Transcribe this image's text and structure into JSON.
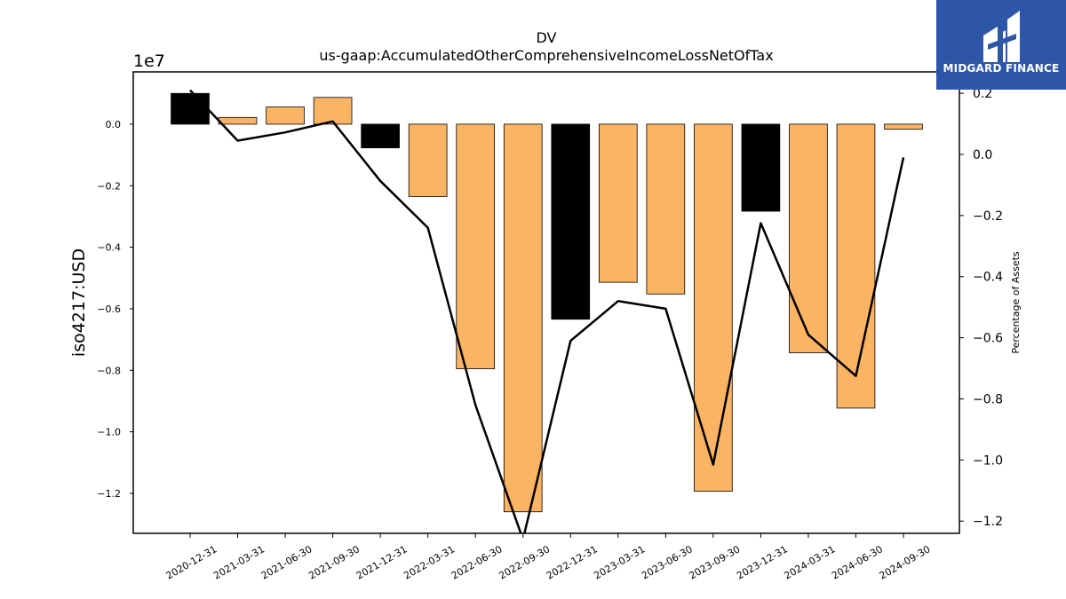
{
  "chart_data": {
    "type": "bar",
    "title": "DV",
    "subtitle": "us-gaap:AccumulatedOtherComprehensiveIncomeLossNetOfTax",
    "ylabel": "iso4217:USD",
    "y2label": "Percentage of Assets",
    "offset_text": "1e7",
    "categories": [
      "2020-12-31",
      "2021-03-31",
      "2021-06-30",
      "2021-09-30",
      "2021-12-31",
      "2022-03-31",
      "2022-06-30",
      "2022-09-30",
      "2022-12-31",
      "2023-03-31",
      "2023-06-30",
      "2023-09-30",
      "2023-12-31",
      "2024-03-31",
      "2024-06-30",
      "2024-09-30"
    ],
    "values": [
      1000000,
      220000,
      560000,
      870000,
      -770000,
      -2350000,
      -7950000,
      -12600000,
      -6340000,
      -5140000,
      -5520000,
      -11930000,
      -2830000,
      -7430000,
      -9230000,
      -160000
    ],
    "bar_colors": [
      "#000000",
      "#fbb463",
      "#fbb463",
      "#fbb463",
      "#000000",
      "#fbb463",
      "#fbb463",
      "#fbb463",
      "#000000",
      "#fbb463",
      "#fbb463",
      "#fbb463",
      "#000000",
      "#fbb463",
      "#fbb463",
      "#fbb463"
    ],
    "ylim": [
      -13300000,
      1700000
    ],
    "yticks": [
      0,
      -2000000,
      -4000000,
      -6000000,
      -8000000,
      -10000000,
      -12000000
    ],
    "ytick_labels": [
      "0.0",
      "−0.2",
      "−0.4",
      "−0.6",
      "−0.8",
      "−1.0",
      "−1.2"
    ],
    "line_series": {
      "values": [
        0.21,
        0.045,
        0.072,
        0.108,
        -0.087,
        -0.24,
        -0.82,
        -1.26,
        -0.61,
        -0.48,
        -0.505,
        -1.015,
        -0.225,
        -0.59,
        -0.725,
        -0.01
      ],
      "color": "#000000"
    },
    "y2lim": [
      -1.24,
      0.27
    ],
    "y2ticks": [
      0.2,
      0.0,
      -0.2,
      -0.4,
      -0.6,
      -0.8,
      -1.0,
      -1.2
    ],
    "y2tick_labels": [
      "0.2",
      "0.0",
      "−0.2",
      "−0.4",
      "−0.6",
      "−0.8",
      "−1.0",
      "−1.2"
    ],
    "grid": false
  },
  "logo": {
    "text": "MIDGARD FINANCE",
    "background": "#2d56a8"
  }
}
